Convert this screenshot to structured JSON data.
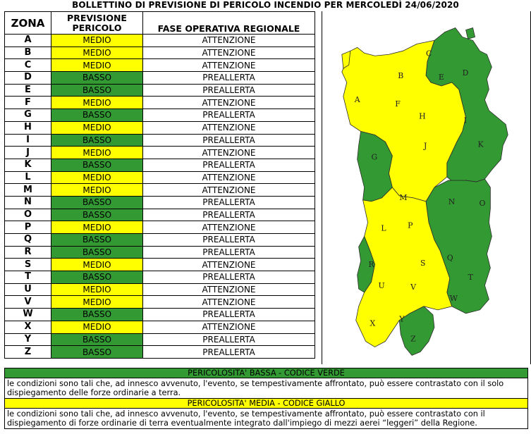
{
  "title": "BOLLETTINO DI PREVISIONE DI PERICOLO INCENDIO PER MERCOLEDÌ 24/06/2020",
  "headers": {
    "zona": "ZONA",
    "previsione_line1": "PREVISIONE",
    "previsione_line2": "PERICOLO",
    "fase": "FASE OPERATIVA REGIONALE"
  },
  "colors": {
    "medio": "#ffff00",
    "basso": "#339933"
  },
  "rows": [
    {
      "zona": "A",
      "pericolo": "MEDIO",
      "fase": "ATTENZIONE"
    },
    {
      "zona": "B",
      "pericolo": "MEDIO",
      "fase": "ATTENZIONE"
    },
    {
      "zona": "C",
      "pericolo": "MEDIO",
      "fase": "ATTENZIONE"
    },
    {
      "zona": "D",
      "pericolo": "BASSO",
      "fase": "PREALLERTA"
    },
    {
      "zona": "E",
      "pericolo": "BASSO",
      "fase": "PREALLERTA"
    },
    {
      "zona": "F",
      "pericolo": "MEDIO",
      "fase": "ATTENZIONE"
    },
    {
      "zona": "G",
      "pericolo": "BASSO",
      "fase": "PREALLERTA"
    },
    {
      "zona": "H",
      "pericolo": "MEDIO",
      "fase": "ATTENZIONE"
    },
    {
      "zona": "I",
      "pericolo": "BASSO",
      "fase": "PREALLERTA"
    },
    {
      "zona": "J",
      "pericolo": "MEDIO",
      "fase": "ATTENZIONE"
    },
    {
      "zona": "K",
      "pericolo": "BASSO",
      "fase": "PREALLERTA"
    },
    {
      "zona": "L",
      "pericolo": "MEDIO",
      "fase": "ATTENZIONE"
    },
    {
      "zona": "M",
      "pericolo": "MEDIO",
      "fase": "ATTENZIONE"
    },
    {
      "zona": "N",
      "pericolo": "BASSO",
      "fase": "PREALLERTA"
    },
    {
      "zona": "O",
      "pericolo": "BASSO",
      "fase": "PREALLERTA"
    },
    {
      "zona": "P",
      "pericolo": "MEDIO",
      "fase": "ATTENZIONE"
    },
    {
      "zona": "Q",
      "pericolo": "BASSO",
      "fase": "PREALLERTA"
    },
    {
      "zona": "R",
      "pericolo": "BASSO",
      "fase": "PREALLERTA"
    },
    {
      "zona": "S",
      "pericolo": "MEDIO",
      "fase": "ATTENZIONE"
    },
    {
      "zona": "T",
      "pericolo": "BASSO",
      "fase": "PREALLERTA"
    },
    {
      "zona": "U",
      "pericolo": "MEDIO",
      "fase": "ATTENZIONE"
    },
    {
      "zona": "V",
      "pericolo": "MEDIO",
      "fase": "ATTENZIONE"
    },
    {
      "zona": "W",
      "pericolo": "BASSO",
      "fase": "PREALLERTA"
    },
    {
      "zona": "X",
      "pericolo": "MEDIO",
      "fase": "ATTENZIONE"
    },
    {
      "zona": "Y",
      "pericolo": "BASSO",
      "fase": "PREALLERTA"
    },
    {
      "zona": "Z",
      "pericolo": "BASSO",
      "fase": "PREALLERTA"
    }
  ],
  "legend": {
    "bassa_title": "PERICOLOSITA' BASSA - CODICE VERDE",
    "bassa_text": "le condizioni sono tali che, ad innesco avvenuto, l'evento, se tempestivamente affrontato, può essere contrastato con il solo dispiegamento delle forze ordinarie a terra.",
    "media_title": "PERICOLOSITA' MEDIA - CODICE GIALLO",
    "media_text": "le condizioni sono tali che, ad innesco avvenuto, l'evento, se tempestivamente affrontato, può essere contrastato con il dispiegamento di forze ordinarie di terra eventualmente integrato dall'impiego di mezzi aerei “leggeri” della Regione."
  }
}
